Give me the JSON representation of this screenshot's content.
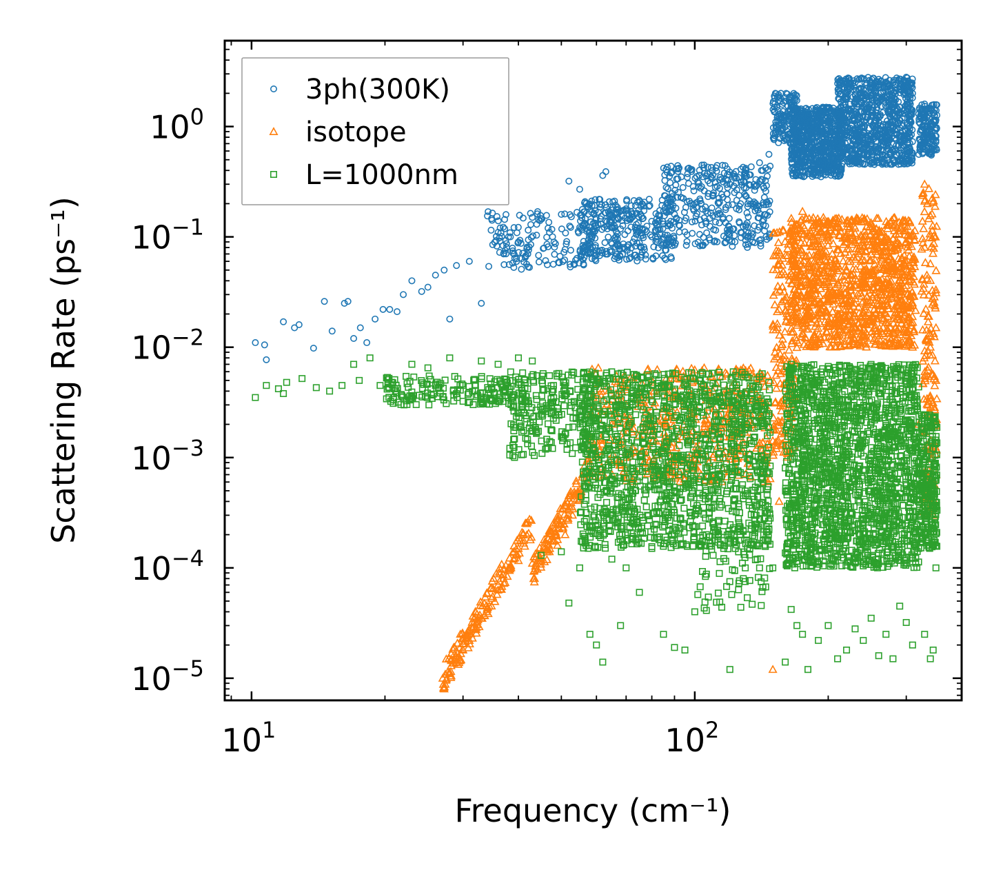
{
  "chart_data": {
    "type": "scatter",
    "xscale": "log",
    "yscale": "log",
    "xlim": [
      8.7,
      400
    ],
    "ylim": [
      6.3e-06,
      6.0
    ],
    "xlabel": "Frequency (cm⁻¹)",
    "ylabel": "Scattering Rate (ps⁻¹)",
    "x_ticks": [
      {
        "value": 10,
        "base": "10",
        "exp": "1"
      },
      {
        "value": 100,
        "base": "10",
        "exp": "2"
      }
    ],
    "y_ticks": [
      {
        "value": 1e-05,
        "base": "10",
        "exp": "−5"
      },
      {
        "value": 0.0001,
        "base": "10",
        "exp": "−4"
      },
      {
        "value": 0.001,
        "base": "10",
        "exp": "−3"
      },
      {
        "value": 0.01,
        "base": "10",
        "exp": "−2"
      },
      {
        "value": 0.1,
        "base": "10",
        "exp": "−1"
      },
      {
        "value": 1,
        "base": "10",
        "exp": "0"
      }
    ],
    "legend_position": "top-left",
    "series": [
      {
        "name": "3ph(300K)",
        "marker": "circle",
        "color": "#1f77b4",
        "points": [
          [
            10.2,
            0.011
          ],
          [
            10.7,
            0.0105
          ],
          [
            10.8,
            0.0077
          ],
          [
            11.8,
            0.017
          ],
          [
            12.5,
            0.015
          ],
          [
            12.8,
            0.016
          ],
          [
            13.8,
            0.0098
          ],
          [
            14.6,
            0.026
          ],
          [
            15.2,
            0.014
          ],
          [
            16.2,
            0.025
          ],
          [
            16.5,
            0.026
          ],
          [
            17.0,
            0.012
          ],
          [
            17.6,
            0.015
          ],
          [
            18.2,
            0.011
          ],
          [
            19.0,
            0.018
          ],
          [
            19.8,
            0.022
          ],
          [
            20.5,
            0.022
          ],
          [
            21.3,
            0.021
          ],
          [
            22.0,
            0.03
          ],
          [
            23.0,
            0.04
          ],
          [
            24.2,
            0.032
          ],
          [
            25.0,
            0.035
          ],
          [
            26.0,
            0.045
          ],
          [
            27.2,
            0.05
          ],
          [
            28.0,
            0.018
          ],
          [
            29.0,
            0.055
          ],
          [
            31.0,
            0.06
          ],
          [
            33.0,
            0.025
          ],
          [
            35.0,
            0.085
          ],
          [
            36.0,
            0.11
          ],
          [
            38.0,
            0.1
          ],
          [
            40.0,
            0.09
          ],
          [
            42.0,
            0.07
          ],
          [
            44.0,
            0.13
          ],
          [
            47.0,
            0.11
          ],
          [
            50.0,
            0.16
          ],
          [
            52.0,
            0.32
          ],
          [
            55.0,
            0.27
          ],
          [
            60.0,
            0.12
          ],
          [
            62.0,
            0.36
          ],
          [
            63.0,
            0.39
          ],
          [
            65.0,
            0.15
          ],
          [
            70.0,
            0.18
          ],
          [
            75.0,
            0.12
          ],
          [
            80.0,
            0.1
          ],
          [
            85.0,
            0.095
          ],
          [
            90.0,
            0.16
          ],
          [
            95.0,
            0.14
          ],
          [
            100.0,
            0.2
          ],
          [
            110.0,
            0.24
          ],
          [
            120.0,
            0.3
          ],
          [
            130.0,
            0.38
          ],
          [
            140.0,
            0.47
          ],
          [
            147.0,
            0.56
          ],
          [
            152.0,
            2.0
          ],
          [
            160.0,
            1.7
          ],
          [
            165.0,
            1.5
          ],
          [
            170.0,
            0.9
          ],
          [
            180.0,
            0.75
          ],
          [
            190.0,
            0.65
          ],
          [
            200.0,
            0.9
          ],
          [
            210.0,
            1.3
          ],
          [
            220.0,
            1.1
          ],
          [
            230.0,
            1.7
          ],
          [
            240.0,
            0.9
          ],
          [
            250.0,
            1.4
          ],
          [
            260.0,
            1.2
          ],
          [
            270.0,
            1.8
          ],
          [
            280.0,
            1.0
          ],
          [
            290.0,
            2.2
          ],
          [
            300.0,
            2.8
          ],
          [
            310.0,
            2.0
          ],
          [
            320.0,
            1.3
          ],
          [
            330.0,
            1.6
          ],
          [
            340.0,
            0.85
          ],
          [
            350.0,
            0.75
          ]
        ],
        "bands": [
          {
            "x_from": 34,
            "x_to": 60,
            "y_low": 0.05,
            "y_high": 0.17,
            "count": 160
          },
          {
            "x_from": 55,
            "x_to": 90,
            "y_low": 0.06,
            "y_high": 0.22,
            "count": 320
          },
          {
            "x_from": 85,
            "x_to": 148,
            "y_low": 0.08,
            "y_high": 0.45,
            "count": 360
          },
          {
            "x_from": 150,
            "x_to": 172,
            "y_low": 0.7,
            "y_high": 2.0,
            "count": 140
          },
          {
            "x_from": 165,
            "x_to": 215,
            "y_low": 0.35,
            "y_high": 1.5,
            "count": 700
          },
          {
            "x_from": 210,
            "x_to": 310,
            "y_low": 0.45,
            "y_high": 2.8,
            "count": 900
          },
          {
            "x_from": 320,
            "x_to": 352,
            "y_low": 0.55,
            "y_high": 1.6,
            "count": 160
          }
        ]
      },
      {
        "name": "isotope",
        "marker": "triangle",
        "color": "#ff7f0e",
        "points": [
          [
            27.0,
            1e-05
          ],
          [
            28.0,
            1.1e-05
          ],
          [
            29.0,
            1.4e-05
          ],
          [
            30.0,
            1.8e-05
          ],
          [
            31.0,
            2.2e-05
          ],
          [
            32.0,
            2.8e-05
          ],
          [
            33.0,
            3.5e-05
          ],
          [
            34.0,
            4.2e-05
          ],
          [
            35.0,
            5.5e-05
          ],
          [
            36.0,
            7e-05
          ],
          [
            37.0,
            8e-05
          ],
          [
            38.0,
            0.0001
          ],
          [
            39.0,
            0.00012
          ],
          [
            40.0,
            0.00015
          ],
          [
            41.0,
            0.0002
          ],
          [
            42.0,
            0.00026
          ],
          [
            43.0,
            0.00011
          ],
          [
            45.0,
            0.00012
          ],
          [
            47.0,
            0.00014
          ],
          [
            49.0,
            0.00016
          ],
          [
            51.0,
            0.0002
          ],
          [
            53.0,
            0.0003
          ],
          [
            55.0,
            0.00045
          ],
          [
            57.0,
            0.0006
          ],
          [
            58.0,
            0.00075
          ],
          [
            60.0,
            0.001
          ],
          [
            65.0,
            0.002
          ],
          [
            70.0,
            0.003
          ],
          [
            80.0,
            0.004
          ],
          [
            90.0,
            0.004
          ],
          [
            105.0,
            0.0065
          ],
          [
            120.0,
            0.004
          ],
          [
            135.0,
            0.002
          ],
          [
            145.0,
            0.0015
          ],
          [
            150.0,
            1.2e-05
          ],
          [
            155.0,
            0.0004
          ],
          [
            162.0,
            0.0075
          ],
          [
            165.0,
            0.12
          ],
          [
            170.0,
            0.03
          ],
          [
            175.0,
            0.17
          ],
          [
            180.0,
            0.03
          ],
          [
            190.0,
            0.06
          ],
          [
            200.0,
            0.03
          ],
          [
            210.0,
            0.02
          ],
          [
            220.0,
            0.09
          ],
          [
            230.0,
            0.12
          ],
          [
            240.0,
            0.05
          ],
          [
            250.0,
            0.07
          ],
          [
            260.0,
            0.08
          ],
          [
            270.0,
            0.1
          ],
          [
            280.0,
            0.06
          ],
          [
            290.0,
            0.04
          ],
          [
            300.0,
            0.09
          ],
          [
            310.0,
            0.01
          ],
          [
            320.0,
            0.002
          ],
          [
            330.0,
            0.3
          ],
          [
            335.0,
            0.2
          ],
          [
            340.0,
            0.01
          ],
          [
            350.0,
            0.005
          ],
          [
            345.0,
            0.0003
          ]
        ],
        "bands": [
          {
            "x_from": 27,
            "x_to": 43,
            "y_low": 1e-05,
            "y_high": 0.00025,
            "count": 160,
            "trend": "up"
          },
          {
            "x_from": 43,
            "x_to": 58,
            "y_low": 9e-05,
            "y_high": 0.0008,
            "count": 120,
            "trend": "up"
          },
          {
            "x_from": 58,
            "x_to": 148,
            "y_low": 0.0006,
            "y_high": 0.0065,
            "count": 500
          },
          {
            "x_from": 150,
            "x_to": 170,
            "y_low": 0.001,
            "y_high": 0.12,
            "count": 200
          },
          {
            "x_from": 165,
            "x_to": 315,
            "y_low": 0.01,
            "y_high": 0.15,
            "count": 1200
          },
          {
            "x_from": 325,
            "x_to": 352,
            "y_low": 0.0003,
            "y_high": 0.3,
            "count": 160
          }
        ]
      },
      {
        "name": "L=1000nm",
        "marker": "square",
        "color": "#2ca02c",
        "points": [
          [
            10.2,
            0.0035
          ],
          [
            10.8,
            0.0045
          ],
          [
            11.5,
            0.0042
          ],
          [
            11.8,
            0.0038
          ],
          [
            12.0,
            0.0048
          ],
          [
            13.0,
            0.0052
          ],
          [
            14.0,
            0.0043
          ],
          [
            15.0,
            0.004
          ],
          [
            16.0,
            0.0045
          ],
          [
            17.0,
            0.007
          ],
          [
            17.5,
            0.005
          ],
          [
            18.5,
            0.008
          ],
          [
            19.5,
            0.0045
          ],
          [
            21.0,
            0.0042
          ],
          [
            23.0,
            0.007
          ],
          [
            25.0,
            0.0065
          ],
          [
            26.0,
            0.0045
          ],
          [
            28.0,
            0.008
          ],
          [
            30.0,
            0.0045
          ],
          [
            33.0,
            0.0075
          ],
          [
            36.0,
            0.007
          ],
          [
            40.0,
            0.008
          ],
          [
            43.0,
            0.0075
          ],
          [
            45.0,
            0.00013
          ],
          [
            48.0,
            0.0045
          ],
          [
            50.0,
            0.00014
          ],
          [
            52.0,
            4.8e-05
          ],
          [
            55.0,
            0.0001
          ],
          [
            58.0,
            2.5e-05
          ],
          [
            60.0,
            2e-05
          ],
          [
            62.0,
            1.4e-05
          ],
          [
            65.0,
            0.00012
          ],
          [
            68.0,
            3e-05
          ],
          [
            70.0,
            0.0001
          ],
          [
            75.0,
            6e-05
          ],
          [
            80.0,
            0.00015
          ],
          [
            85.0,
            2.5e-05
          ],
          [
            90.0,
            1.9e-05
          ],
          [
            95.0,
            1.8e-05
          ],
          [
            100.0,
            4e-05
          ],
          [
            110.0,
            0.00013
          ],
          [
            120.0,
            1.2e-05
          ],
          [
            130.0,
            0.0001
          ],
          [
            140.0,
            0.0001
          ],
          [
            150.0,
            0.0001
          ],
          [
            160.0,
            1.4e-05
          ],
          [
            165.0,
            4.2e-05
          ],
          [
            170.0,
            3e-05
          ],
          [
            175.0,
            2.5e-05
          ],
          [
            180.0,
            1.2e-05
          ],
          [
            190.0,
            2.2e-05
          ],
          [
            200.0,
            3e-05
          ],
          [
            210.0,
            1.5e-05
          ],
          [
            220.0,
            1.8e-05
          ],
          [
            230.0,
            2.8e-05
          ],
          [
            240.0,
            2.2e-05
          ],
          [
            250.0,
            3.5e-05
          ],
          [
            260.0,
            1.6e-05
          ],
          [
            270.0,
            2.5e-05
          ],
          [
            280.0,
            1.5e-05
          ],
          [
            290.0,
            4.5e-05
          ],
          [
            300.0,
            3.2e-05
          ],
          [
            310.0,
            2e-05
          ],
          [
            320.0,
            0.00015
          ],
          [
            330.0,
            2.5e-05
          ],
          [
            340.0,
            1.5e-05
          ],
          [
            345.0,
            1.8e-05
          ],
          [
            350.0,
            0.0001
          ]
        ],
        "bands": [
          {
            "x_from": 20,
            "x_to": 42,
            "y_low": 0.003,
            "y_high": 0.0055,
            "count": 180
          },
          {
            "x_from": 38,
            "x_to": 60,
            "y_low": 0.001,
            "y_high": 0.006,
            "count": 240
          },
          {
            "x_from": 55,
            "x_to": 148,
            "y_low": 0.00015,
            "y_high": 0.006,
            "count": 1400
          },
          {
            "x_from": 100,
            "x_to": 148,
            "y_low": 4e-05,
            "y_high": 0.0002,
            "count": 60
          },
          {
            "x_from": 160,
            "x_to": 320,
            "y_low": 0.0001,
            "y_high": 0.007,
            "count": 1900
          },
          {
            "x_from": 320,
            "x_to": 352,
            "y_low": 0.00015,
            "y_high": 0.0025,
            "count": 260
          }
        ]
      }
    ]
  }
}
